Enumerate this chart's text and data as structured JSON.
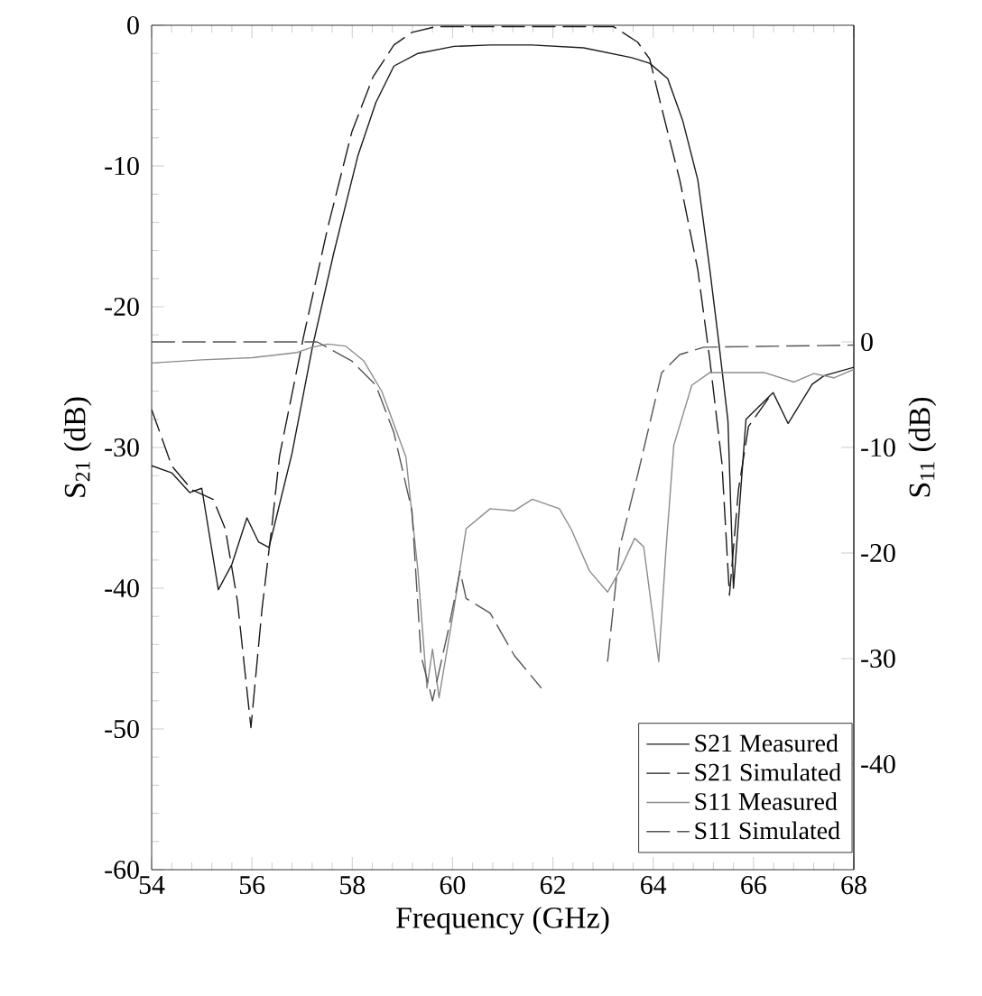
{
  "chart_data": {
    "type": "line",
    "xlabel": "Frequency (GHz)",
    "ylabel": "S$_{21}$ (dB)",
    "y2label": "S$_{11}$ (dB)",
    "xlim": [
      54,
      68
    ],
    "xticks": [
      54,
      56,
      58,
      60,
      62,
      64,
      66,
      68
    ],
    "ylim": [
      -60,
      0
    ],
    "yticks": [
      -60,
      -50,
      -40,
      -30,
      -20,
      -10,
      0
    ],
    "y2lim": [
      -50,
      30
    ],
    "y2ticks": [
      -40,
      -30,
      -20,
      -10,
      0
    ],
    "legend": "bottom right",
    "series": [
      {
        "name": "S21 Measured",
        "color": "#1a1a1a",
        "line_style": "solid",
        "x": [
          54.0,
          54.4,
          54.76,
          55.0,
          55.33,
          55.6,
          55.9,
          56.13,
          56.34,
          56.8,
          57.21,
          57.63,
          58.11,
          58.47,
          58.83,
          59.31,
          60.03,
          60.75,
          61.59,
          62.61,
          63.57,
          63.93,
          64.29,
          64.59,
          64.89,
          65.13,
          65.31,
          65.49,
          65.6,
          65.85,
          66.39,
          66.69,
          67.17,
          67.41,
          68.0
        ],
        "values": [
          -31.3,
          -31.8,
          -33.2,
          -32.9,
          -40.1,
          -38.3,
          -35.0,
          -36.7,
          -37.1,
          -30.4,
          -22.8,
          -16.2,
          -9.3,
          -5.5,
          -2.9,
          -2.0,
          -1.5,
          -1.4,
          -1.4,
          -1.6,
          -2.3,
          -2.7,
          -3.8,
          -6.8,
          -11.0,
          -17.4,
          -22.6,
          -28.1,
          -40.0,
          -28.0,
          -26.1,
          -28.3,
          -25.5,
          -24.9,
          -24.3
        ]
      },
      {
        "name": "S21 Simulated",
        "color": "#1a1a1a",
        "line_style": "dashed",
        "x": [
          54.0,
          54.4,
          54.8,
          55.23,
          55.47,
          55.71,
          55.98,
          56.2,
          56.4,
          56.55,
          57.03,
          57.51,
          57.99,
          58.41,
          58.83,
          59.19,
          59.67,
          63.21,
          63.69,
          63.93,
          64.17,
          64.53,
          64.89,
          65.13,
          65.37,
          65.52,
          65.7,
          65.9,
          66.3
        ],
        "values": [
          -27.3,
          -31.3,
          -33.0,
          -33.7,
          -35.8,
          -40.9,
          -49.9,
          -41.5,
          -35.5,
          -30.6,
          -22.1,
          -14.4,
          -7.6,
          -3.7,
          -1.4,
          -0.5,
          -0.1,
          -0.1,
          -1.2,
          -2.4,
          -5.9,
          -11.0,
          -17.4,
          -23.8,
          -31.1,
          -40.5,
          -33.0,
          -28.5,
          -26.5
        ]
      },
      {
        "name": "S11 Measured",
        "color": "#8c8c8c",
        "line_style": "solid",
        "axis": "y2",
        "x": [
          54.0,
          55.0,
          56.0,
          56.9,
          57.2,
          57.51,
          57.87,
          58.23,
          58.59,
          59.07,
          59.31,
          59.49,
          59.6,
          59.73,
          60.03,
          60.27,
          60.75,
          61.23,
          61.59,
          62.13,
          62.37,
          62.73,
          63.09,
          63.33,
          63.63,
          63.81,
          64.11,
          64.25,
          64.41,
          64.77,
          65.13,
          66.21,
          66.81,
          67.2,
          67.6,
          68.0
        ],
        "values": [
          -2.0,
          -1.7,
          -1.5,
          -1.0,
          -0.5,
          -0.2,
          -0.4,
          -1.8,
          -4.7,
          -10.9,
          -21.7,
          -32.8,
          -29.1,
          -33.7,
          -25.2,
          -17.7,
          -15.8,
          -16.0,
          -14.9,
          -15.8,
          -17.8,
          -21.7,
          -23.7,
          -21.7,
          -18.6,
          -19.4,
          -30.3,
          -20.0,
          -9.8,
          -4.1,
          -2.9,
          -2.9,
          -3.8,
          -3.0,
          -3.4,
          -2.6
        ]
      },
      {
        "name": "S11 Simulated",
        "color": "#555555",
        "line_style": "dashed",
        "axis": "y2",
        "x": [
          54.0,
          57.3,
          57.99,
          58.47,
          58.83,
          59.19,
          59.37,
          59.6,
          59.91,
          60.15,
          60.27,
          60.75,
          61.23,
          61.77,
          62.4,
          63.09,
          63.33,
          63.69,
          64.17,
          64.53,
          65.01,
          68.0
        ],
        "values": [
          0.0,
          0.0,
          -1.8,
          -4.1,
          -8.6,
          -16.0,
          -29.7,
          -34.0,
          -27.4,
          -21.7,
          -24.3,
          -25.7,
          -29.7,
          -32.8,
          null,
          -30.3,
          -19.5,
          -12.6,
          -2.9,
          -1.2,
          -0.5,
          -0.3
        ]
      }
    ]
  }
}
